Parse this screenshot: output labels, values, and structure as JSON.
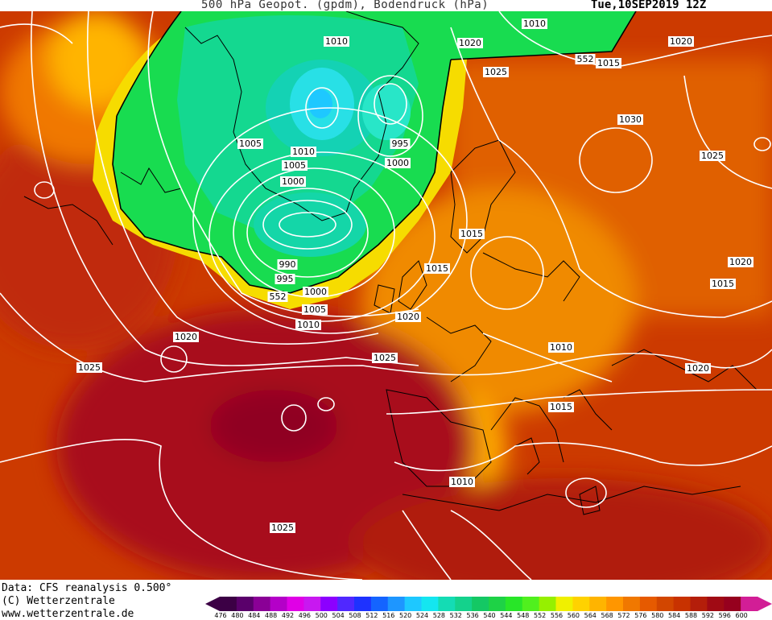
{
  "header": {
    "title": "500 hPa Geopot. (gpdm), Bodendruck (hPa)",
    "datetime": "Tue,10SEP2019 12Z"
  },
  "footer": {
    "data_line": "Data: CFS reanalysis 0.500°",
    "copyright_line": "(C) Wetterzentrale",
    "url_line": "www.wetterzentrale.de"
  },
  "colorbar": {
    "values": [
      "476",
      "480",
      "484",
      "488",
      "492",
      "496",
      "500",
      "504",
      "508",
      "512",
      "516",
      "520",
      "524",
      "528",
      "532",
      "536",
      "540",
      "544",
      "548",
      "552",
      "556",
      "560",
      "564",
      "568",
      "572",
      "576",
      "580",
      "584",
      "588",
      "592",
      "596",
      "600"
    ],
    "colors": [
      "#3c0045",
      "#5a006b",
      "#8a0096",
      "#b400c8",
      "#e000e6",
      "#c818f0",
      "#8c00ff",
      "#5028ff",
      "#1e32ff",
      "#1464ff",
      "#1e96ff",
      "#1ec8ff",
      "#14e6f0",
      "#14dcb4",
      "#14d28c",
      "#14c864",
      "#1ed246",
      "#28e628",
      "#50f01e",
      "#96f000",
      "#f0f000",
      "#ffd200",
      "#ffb400",
      "#ff9600",
      "#f07800",
      "#e65a00",
      "#d24600",
      "#c83200",
      "#b41e0a",
      "#a00a14",
      "#96001e",
      "#d21e96"
    ]
  },
  "isobar_labels": [
    {
      "text": "1010"
    },
    {
      "text": "1010"
    },
    {
      "text": "1020"
    },
    {
      "text": "1020"
    },
    {
      "text": "552"
    },
    {
      "text": "1015"
    },
    {
      "text": "1025"
    },
    {
      "text": "1030"
    },
    {
      "text": "1005"
    },
    {
      "text": "1010"
    },
    {
      "text": "995"
    },
    {
      "text": "1005"
    },
    {
      "text": "1000"
    },
    {
      "text": "1000"
    },
    {
      "text": "1025"
    },
    {
      "text": "1015"
    },
    {
      "text": "1015"
    },
    {
      "text": "990"
    },
    {
      "text": "995"
    },
    {
      "text": "1020"
    },
    {
      "text": "552"
    },
    {
      "text": "1000"
    },
    {
      "text": "1005"
    },
    {
      "text": "1015"
    },
    {
      "text": "1020"
    },
    {
      "text": "1010"
    },
    {
      "text": "1020"
    },
    {
      "text": "1025"
    },
    {
      "text": "1010"
    },
    {
      "text": "1025"
    },
    {
      "text": "1020"
    },
    {
      "text": "1015"
    },
    {
      "text": "1010"
    },
    {
      "text": "1025"
    }
  ],
  "colors": {
    "land_outline": "#000000",
    "isobar": "#ffffff",
    "contour_552": "#000000"
  }
}
